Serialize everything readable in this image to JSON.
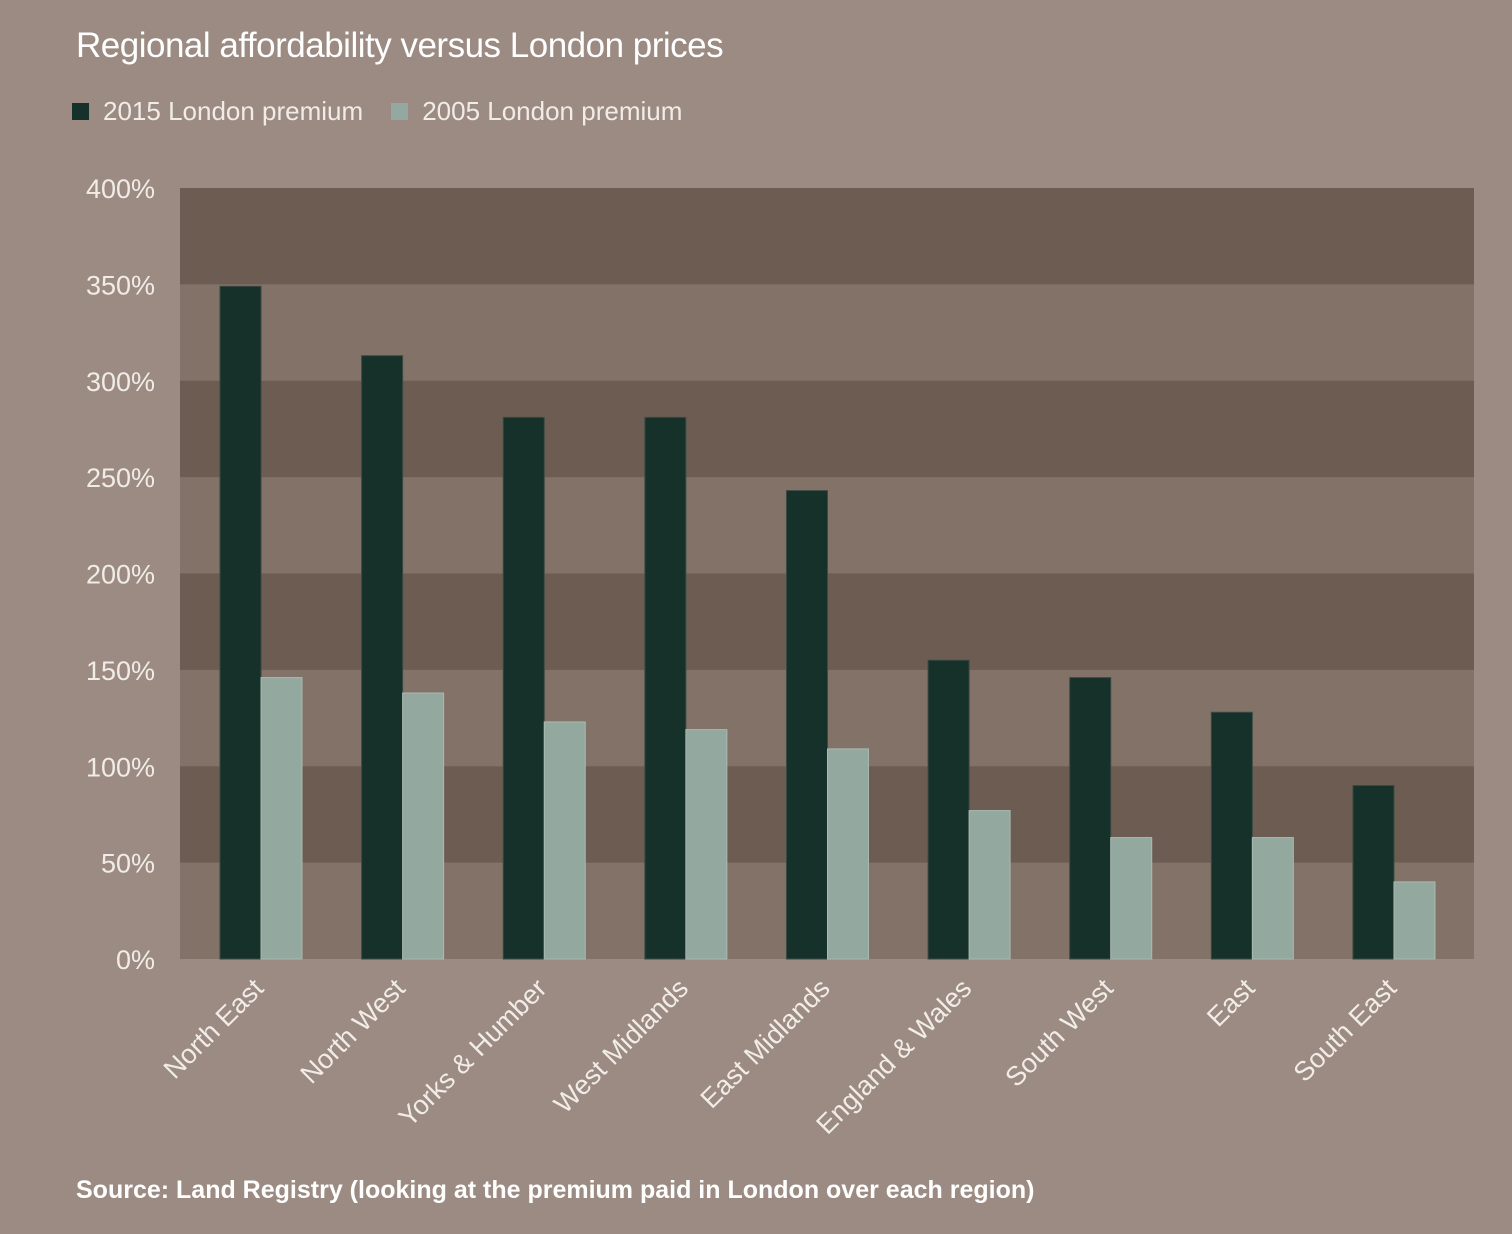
{
  "title": "Regional affordability versus London prices",
  "source": "Source: Land Registry (looking at the premium paid in London over each region)",
  "colors": {
    "background": "#9b8b82",
    "band_dark": "#6d5c52",
    "band_light": "#837268",
    "series_2015": "#16302a",
    "series_2005": "#93a89f"
  },
  "chart_data": {
    "type": "bar",
    "title": "Regional affordability versus London prices",
    "xlabel": "",
    "ylabel": "",
    "ylim": [
      0,
      400
    ],
    "yticks": [
      0,
      50,
      100,
      150,
      200,
      250,
      300,
      350,
      400
    ],
    "ytick_labels": [
      "0%",
      "50%",
      "100%",
      "150%",
      "200%",
      "250%",
      "300%",
      "350%",
      "400%"
    ],
    "grid": "alternating horizontal bands",
    "legend_position": "top-left",
    "categories": [
      "North East",
      "North West",
      "Yorks & Humber",
      "West Midlands",
      "East Midlands",
      "England & Wales",
      "South West",
      "East",
      "South East"
    ],
    "series": [
      {
        "name": "2015 London premium",
        "color": "#16302a",
        "values": [
          349,
          313,
          281,
          281,
          243,
          155,
          146,
          128,
          90
        ]
      },
      {
        "name": "2005 London premium",
        "color": "#93a89f",
        "values": [
          146,
          138,
          123,
          119,
          109,
          77,
          63,
          63,
          40
        ]
      }
    ]
  }
}
